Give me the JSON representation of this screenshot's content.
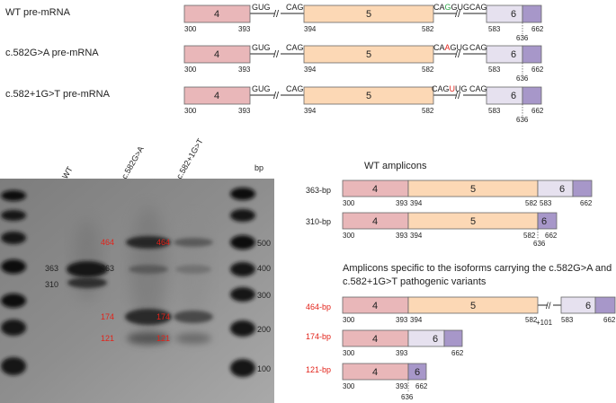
{
  "colors": {
    "exon4": "#e9b7b9",
    "exon5": "#fcd8b5",
    "exon6a": "#e6e1ef",
    "exon6b": "#a797c9",
    "highlight_green": "#2ea84a",
    "highlight_red": "#e2231a",
    "label_red": "#e2231a"
  },
  "exon_labels": {
    "e4": "4",
    "e5": "5",
    "e6": "6"
  },
  "transcripts": [
    {
      "label": "WT pre-mRNA",
      "motif_left": "GUG",
      "motif_mid": "CAG",
      "motif_right": "CAG",
      "seq_right": {
        "pre": "CA",
        "hl": "G",
        "post": "GUG",
        "hl_color": "green"
      },
      "pos": {
        "p300": "300",
        "p393": "393",
        "p394": "394",
        "p582": "582",
        "p583": "583",
        "p636": "636",
        "p662": "662"
      }
    },
    {
      "label": "c.582G>A  pre-mRNA",
      "motif_left": "GUG",
      "motif_mid": "CAG",
      "motif_right": "CAG",
      "seq_right": {
        "pre": "CA",
        "hl": "A",
        "post": "GUG",
        "hl_color": "red"
      },
      "pos": {
        "p300": "300",
        "p393": "393",
        "p394": "394",
        "p582": "582",
        "p583": "583",
        "p636": "636",
        "p662": "662"
      }
    },
    {
      "label": "c.582+1G>T pre-mRNA",
      "motif_left": "GUG",
      "motif_mid": "CAG",
      "motif_right": "CAG",
      "seq_right": {
        "pre": "CAG",
        "hl": "U",
        "post": "UG",
        "hl_color": "red"
      },
      "pos": {
        "p300": "300",
        "p393": "393",
        "p394": "394",
        "p582": "582",
        "p583": "583",
        "p636": "636",
        "p662": "662"
      }
    }
  ],
  "gel": {
    "lane_labels": {
      "wt": "WT",
      "v1": "c.582G>A",
      "v2": "c.582+1G>T",
      "bp": "bp"
    },
    "bands_black": {
      "b363a": "363",
      "b310": "310",
      "b363b": "363"
    },
    "bands_red": {
      "b464a": "464",
      "b464b": "464",
      "b174a": "174",
      "b174b": "174",
      "b121a": "121",
      "b121b": "121"
    },
    "ladder": [
      "500",
      "400",
      "300",
      "200",
      "100"
    ]
  },
  "wt_amplicons": {
    "title": "WT amplicons",
    "items": [
      {
        "label": "363-bp",
        "pos": {
          "p300": "300",
          "p393": "393",
          "p394": "394",
          "p582": "582",
          "p583": "583",
          "p662": "662"
        }
      },
      {
        "label": "310-bp",
        "pos": {
          "p300": "300",
          "p393": "393",
          "p394": "394",
          "p582": "582",
          "p636": "636",
          "p662": "662"
        }
      }
    ]
  },
  "isoform_section": {
    "title_line1": "Amplicons specific to the isoforms carrying the c.582G>A and",
    "title_line2": "c.582+1G>T pathogenic variants",
    "items": [
      {
        "label": "464-bp",
        "pos": {
          "p300": "300",
          "p393": "393",
          "p394": "394",
          "p582": "582",
          "p101": "+101",
          "p583": "583",
          "p662": "662"
        }
      },
      {
        "label": "174-bp",
        "pos": {
          "p300": "300",
          "p393": "393",
          "p662": "662"
        }
      },
      {
        "label": "121-bp",
        "pos": {
          "p300": "300",
          "p393": "393",
          "p636": "636",
          "p662": "662"
        }
      }
    ]
  }
}
